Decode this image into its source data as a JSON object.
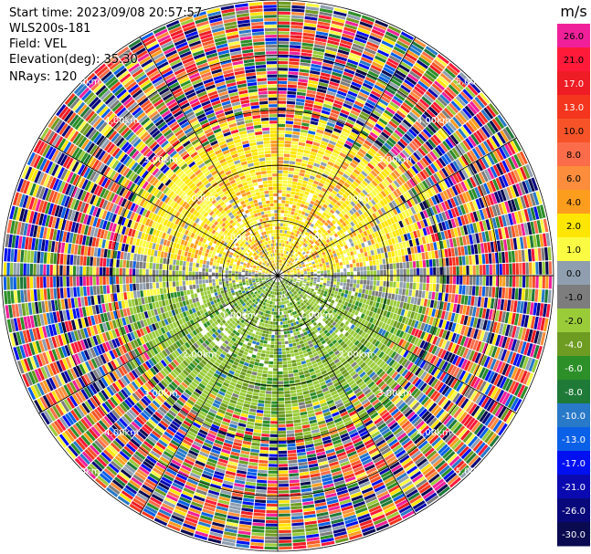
{
  "header": {
    "start_time": "Start time: 2023/09/08 20:57:57",
    "instrument": "WLS200s-181",
    "field": "Field: VEL",
    "elevation": "Elevation(deg): 35.30",
    "nrays": "NRays: 120"
  },
  "chart_data": {
    "type": "heatmap",
    "projection": "polar-ppi",
    "field": "VEL",
    "n_rays": 120,
    "range_rings_km": [
      1.0,
      2.0,
      3.0,
      4.0,
      5.0
    ],
    "ring_label_text": "1.00km",
    "ring_labels": [
      "1.00km",
      "2.00km",
      "3.00km",
      "4.00km",
      "5.00km"
    ],
    "spokes_deg": [
      0,
      30,
      60,
      90,
      120,
      150,
      180,
      210,
      240,
      270,
      300,
      330
    ],
    "colorbar": {
      "unit": "m/s",
      "ticks": [
        "26.0",
        "21.0",
        "17.0",
        "13.0",
        "10.0",
        "8.0",
        "6.0",
        "4.0",
        "2.0",
        "1.0",
        "0.0",
        "-1.0",
        "-2.0",
        "-4.0",
        "-6.0",
        "-8.0",
        "-10.0",
        "-13.0",
        "-17.0",
        "-21.0",
        "-26.0",
        "-30.0"
      ],
      "colors": [
        "#f0209a",
        "#ff1a3a",
        "#ee1c24",
        "#f4361e",
        "#f65428",
        "#fb6c4a",
        "#fb8d3c",
        "#fd9d1e",
        "#ffe600",
        "#fbfb44",
        "#8f9fb0",
        "#7d7d7d",
        "#9acc3a",
        "#6e9c22",
        "#2c8f28",
        "#1f7a38",
        "#2879c8",
        "#0a60e6",
        "#0010f0",
        "#0a0ab0",
        "#08087a",
        "#0a0a50"
      ]
    }
  }
}
